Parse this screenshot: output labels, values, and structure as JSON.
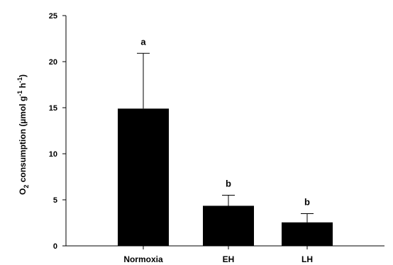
{
  "chart_data": {
    "type": "bar",
    "categories": [
      "Normoxia",
      "EH",
      "LH"
    ],
    "values": [
      14.9,
      4.35,
      2.55
    ],
    "errors": [
      6.0,
      1.15,
      0.95
    ],
    "significance_labels": [
      "a",
      "b",
      "b"
    ],
    "ylim": [
      0,
      25
    ],
    "yticks": [
      "0",
      "5",
      "10",
      "15",
      "20",
      "25"
    ],
    "ylabel": {
      "base": "O",
      "sub": "2",
      "mid": " consumption (µmol g",
      "sup1": "-1",
      "mid2": " h",
      "sup2": "-1",
      "end": ")"
    },
    "bar_color": "#000000",
    "grid": false
  }
}
